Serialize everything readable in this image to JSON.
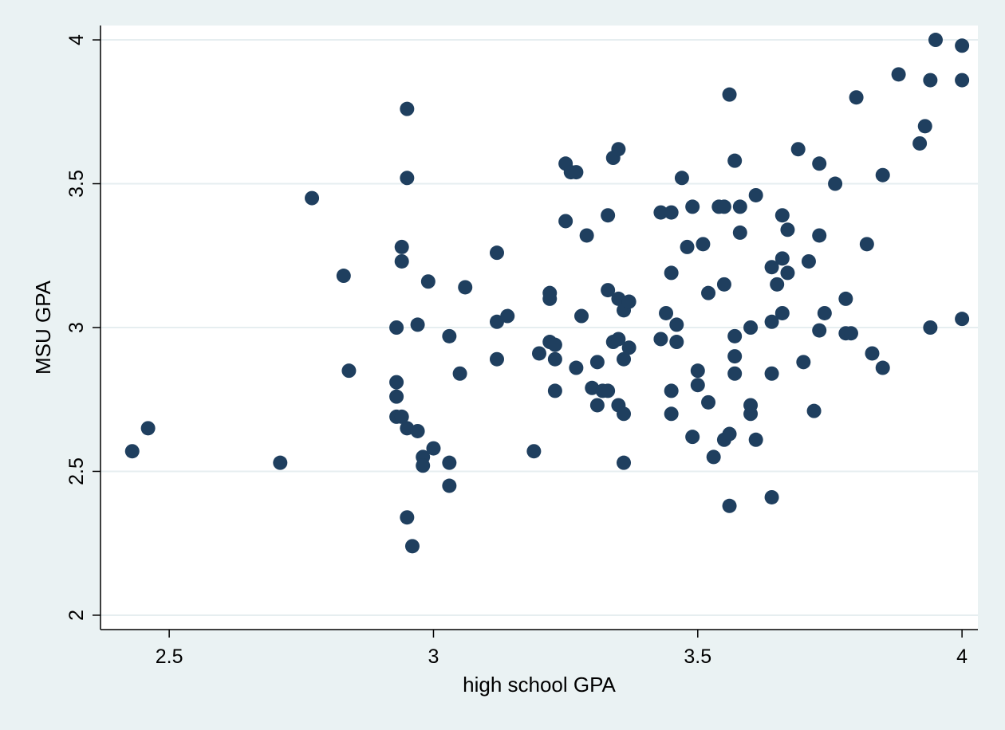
{
  "chart_data": {
    "type": "scatter",
    "xlabel": "high school GPA",
    "ylabel": "MSU GPA",
    "xlim": [
      2.37,
      4.03
    ],
    "ylim": [
      1.95,
      4.05
    ],
    "x_ticks": [
      2.5,
      3,
      3.5,
      4
    ],
    "y_ticks": [
      2,
      2.5,
      3,
      3.5,
      4
    ],
    "x_tick_labels": [
      "2.5",
      "3",
      "3.5",
      "4"
    ],
    "y_tick_labels": [
      "2",
      "2.5",
      "3",
      "3.5",
      "4"
    ],
    "grid": "horizontal",
    "colors": {
      "background": "#eaf2f3",
      "plot_area": "#ffffff",
      "marker": "#1f3f5f",
      "grid": "#e6eef0"
    },
    "points": [
      [
        2.43,
        2.57
      ],
      [
        2.46,
        2.65
      ],
      [
        2.71,
        2.53
      ],
      [
        2.77,
        3.45
      ],
      [
        2.83,
        3.18
      ],
      [
        2.84,
        2.85
      ],
      [
        2.93,
        3.0
      ],
      [
        2.93,
        2.81
      ],
      [
        2.93,
        2.76
      ],
      [
        2.93,
        2.69
      ],
      [
        2.94,
        2.69
      ],
      [
        2.94,
        3.28
      ],
      [
        2.94,
        3.23
      ],
      [
        2.95,
        3.76
      ],
      [
        2.95,
        3.52
      ],
      [
        2.95,
        2.65
      ],
      [
        2.95,
        2.34
      ],
      [
        2.96,
        2.24
      ],
      [
        2.97,
        3.01
      ],
      [
        2.97,
        2.64
      ],
      [
        2.98,
        2.55
      ],
      [
        2.98,
        2.52
      ],
      [
        2.99,
        3.16
      ],
      [
        3.0,
        2.58
      ],
      [
        3.03,
        2.97
      ],
      [
        3.03,
        2.53
      ],
      [
        3.03,
        2.45
      ],
      [
        3.05,
        2.84
      ],
      [
        3.06,
        3.14
      ],
      [
        3.12,
        3.26
      ],
      [
        3.12,
        3.02
      ],
      [
        3.12,
        2.89
      ],
      [
        3.14,
        3.04
      ],
      [
        3.19,
        2.57
      ],
      [
        3.2,
        2.91
      ],
      [
        3.22,
        3.12
      ],
      [
        3.22,
        3.1
      ],
      [
        3.22,
        2.95
      ],
      [
        3.23,
        2.94
      ],
      [
        3.23,
        2.89
      ],
      [
        3.23,
        2.78
      ],
      [
        3.25,
        3.57
      ],
      [
        3.25,
        3.37
      ],
      [
        3.26,
        3.54
      ],
      [
        3.27,
        3.54
      ],
      [
        3.27,
        2.86
      ],
      [
        3.28,
        3.04
      ],
      [
        3.29,
        3.32
      ],
      [
        3.3,
        2.79
      ],
      [
        3.31,
        2.88
      ],
      [
        3.31,
        2.73
      ],
      [
        3.32,
        2.78
      ],
      [
        3.33,
        3.39
      ],
      [
        3.33,
        3.13
      ],
      [
        3.33,
        2.78
      ],
      [
        3.34,
        3.59
      ],
      [
        3.34,
        2.95
      ],
      [
        3.35,
        3.62
      ],
      [
        3.35,
        3.1
      ],
      [
        3.35,
        2.96
      ],
      [
        3.35,
        2.73
      ],
      [
        3.36,
        2.53
      ],
      [
        3.36,
        3.06
      ],
      [
        3.36,
        2.89
      ],
      [
        3.36,
        2.7
      ],
      [
        3.37,
        3.09
      ],
      [
        3.37,
        2.93
      ],
      [
        3.43,
        3.4
      ],
      [
        3.43,
        2.96
      ],
      [
        3.44,
        3.05
      ],
      [
        3.45,
        3.19
      ],
      [
        3.45,
        2.78
      ],
      [
        3.45,
        3.4
      ],
      [
        3.46,
        2.95
      ],
      [
        3.46,
        3.01
      ],
      [
        3.45,
        2.7
      ],
      [
        3.47,
        3.52
      ],
      [
        3.48,
        3.28
      ],
      [
        3.49,
        3.42
      ],
      [
        3.49,
        2.62
      ],
      [
        3.5,
        2.85
      ],
      [
        3.5,
        2.8
      ],
      [
        3.51,
        3.29
      ],
      [
        3.52,
        2.74
      ],
      [
        3.52,
        3.12
      ],
      [
        3.53,
        2.55
      ],
      [
        3.54,
        3.42
      ],
      [
        3.55,
        3.42
      ],
      [
        3.55,
        2.61
      ],
      [
        3.55,
        3.15
      ],
      [
        3.56,
        3.81
      ],
      [
        3.56,
        2.38
      ],
      [
        3.56,
        2.63
      ],
      [
        3.57,
        3.58
      ],
      [
        3.57,
        2.97
      ],
      [
        3.57,
        2.84
      ],
      [
        3.57,
        2.9
      ],
      [
        3.58,
        3.42
      ],
      [
        3.58,
        3.33
      ],
      [
        3.6,
        2.7
      ],
      [
        3.6,
        2.73
      ],
      [
        3.6,
        3.0
      ],
      [
        3.61,
        3.46
      ],
      [
        3.61,
        2.61
      ],
      [
        3.64,
        2.41
      ],
      [
        3.64,
        3.21
      ],
      [
        3.64,
        3.02
      ],
      [
        3.64,
        2.84
      ],
      [
        3.65,
        3.15
      ],
      [
        3.66,
        3.39
      ],
      [
        3.66,
        3.24
      ],
      [
        3.66,
        3.05
      ],
      [
        3.67,
        3.34
      ],
      [
        3.67,
        3.19
      ],
      [
        3.69,
        3.62
      ],
      [
        3.7,
        2.88
      ],
      [
        3.71,
        3.23
      ],
      [
        3.72,
        2.71
      ],
      [
        3.73,
        3.57
      ],
      [
        3.73,
        3.32
      ],
      [
        3.73,
        2.99
      ],
      [
        3.74,
        3.05
      ],
      [
        3.76,
        3.5
      ],
      [
        3.78,
        3.1
      ],
      [
        3.78,
        2.98
      ],
      [
        3.79,
        2.98
      ],
      [
        3.8,
        3.8
      ],
      [
        3.82,
        3.29
      ],
      [
        3.83,
        2.91
      ],
      [
        3.85,
        3.53
      ],
      [
        3.85,
        2.86
      ],
      [
        3.88,
        3.88
      ],
      [
        3.92,
        3.64
      ],
      [
        3.93,
        3.7
      ],
      [
        3.94,
        3.86
      ],
      [
        3.95,
        4.0
      ],
      [
        3.94,
        3.0
      ],
      [
        4.0,
        3.98
      ],
      [
        4.0,
        3.86
      ],
      [
        4.0,
        3.03
      ]
    ]
  }
}
